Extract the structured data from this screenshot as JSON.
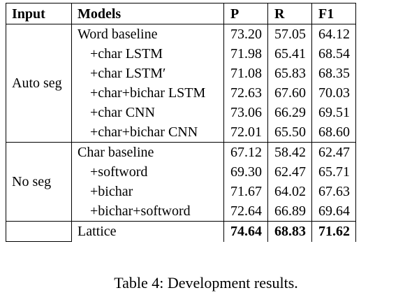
{
  "table": {
    "header": [
      "Input",
      "Models",
      "P",
      "R",
      "F1"
    ],
    "groups": [
      {
        "input": "Auto seg",
        "rows": [
          [
            "Word baseline",
            "73.20",
            "57.05",
            "64.12"
          ],
          [
            "+char LSTM",
            "71.98",
            "65.41",
            "68.54"
          ],
          [
            "+char LSTM′",
            "71.08",
            "65.83",
            "68.35"
          ],
          [
            "+char+bichar LSTM",
            "72.63",
            "67.60",
            "70.03"
          ],
          [
            "+char CNN",
            "73.06",
            "66.29",
            "69.51"
          ],
          [
            "+char+bichar CNN",
            "72.01",
            "65.50",
            "68.60"
          ]
        ]
      },
      {
        "input": "No seg",
        "rows": [
          [
            "Char baseline",
            "67.12",
            "58.42",
            "62.47"
          ],
          [
            "+softword",
            "69.30",
            "62.47",
            "65.71"
          ],
          [
            "+bichar",
            "71.67",
            "64.02",
            "67.63"
          ],
          [
            "+bichar+softword",
            "72.64",
            "66.89",
            "69.64"
          ]
        ]
      },
      {
        "bold": true,
        "rows": [
          [
            "Lattice",
            "74.64",
            "68.83",
            "71.62"
          ]
        ]
      }
    ]
  },
  "caption": "Table 4: Development results."
}
